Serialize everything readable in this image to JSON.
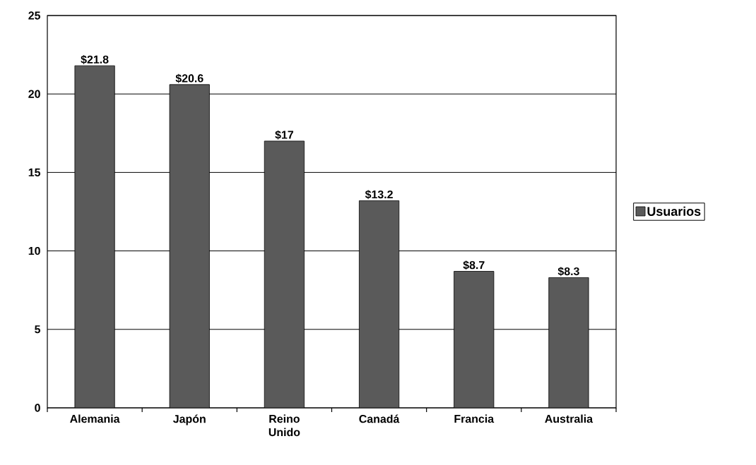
{
  "chart_data": {
    "type": "bar",
    "categories": [
      "Alemania",
      "Japón",
      "Reino Unido",
      "Canadá",
      "Francia",
      "Australia"
    ],
    "series": [
      {
        "name": "Usuarios",
        "color": "#5a5a5a",
        "values": [
          21.8,
          20.6,
          17,
          13.2,
          8.7,
          8.3
        ],
        "value_labels": [
          "$21.8",
          "$20.6",
          "$17",
          "$13.2",
          "$8.7",
          "$8.3"
        ]
      }
    ],
    "ylim": [
      0,
      25
    ],
    "yticks": [
      0,
      5,
      10,
      15,
      20,
      25
    ],
    "grid": "y",
    "legend": "right"
  }
}
